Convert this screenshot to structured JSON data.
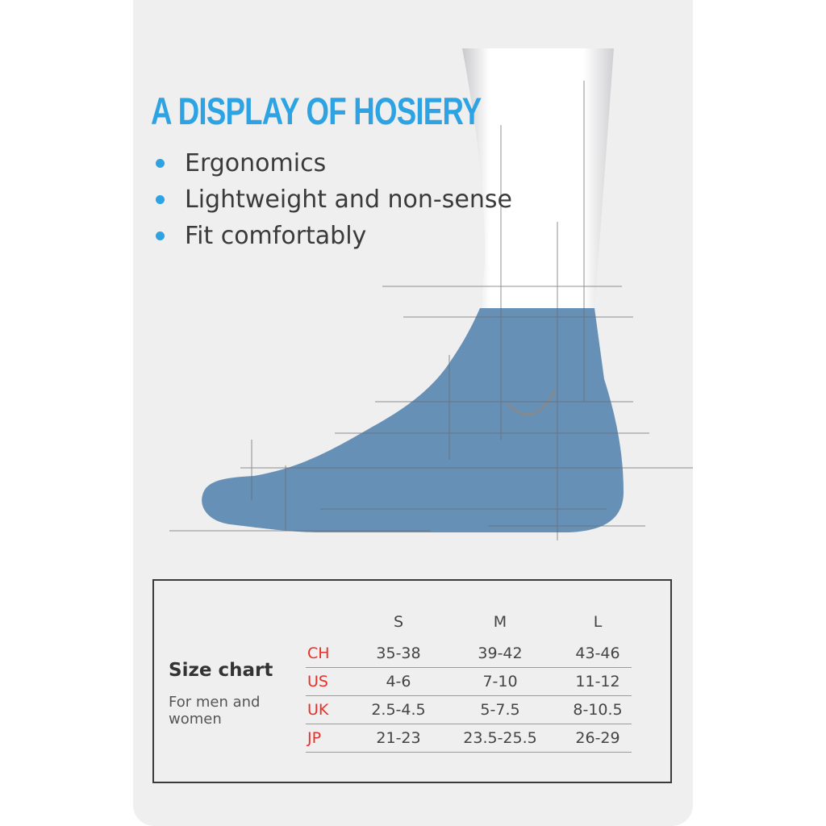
{
  "headline": "A DISPLAY OF HOSIERY",
  "features": [
    "Ergonomics",
    "Lightweight and non-sense",
    "Fit comfortably"
  ],
  "size_chart": {
    "title": "Size chart",
    "subtitle": "For men and women",
    "columns": [
      "S",
      "M",
      "L"
    ],
    "rows": [
      {
        "label": "CH",
        "values": [
          "35-38",
          "39-42",
          "43-46"
        ]
      },
      {
        "label": "US",
        "values": [
          "4-6",
          "7-10",
          "11-12"
        ]
      },
      {
        "label": "UK",
        "values": [
          "2.5-4.5",
          "5-7.5",
          "8-10.5"
        ]
      },
      {
        "label": "JP",
        "values": [
          "21-23",
          "23.5-25.5",
          "26-29"
        ]
      }
    ]
  },
  "colors": {
    "accent": "#2ea3e3",
    "sock": "#6690b5",
    "row_label": "#e8302a",
    "card_background": "#efeff0"
  }
}
